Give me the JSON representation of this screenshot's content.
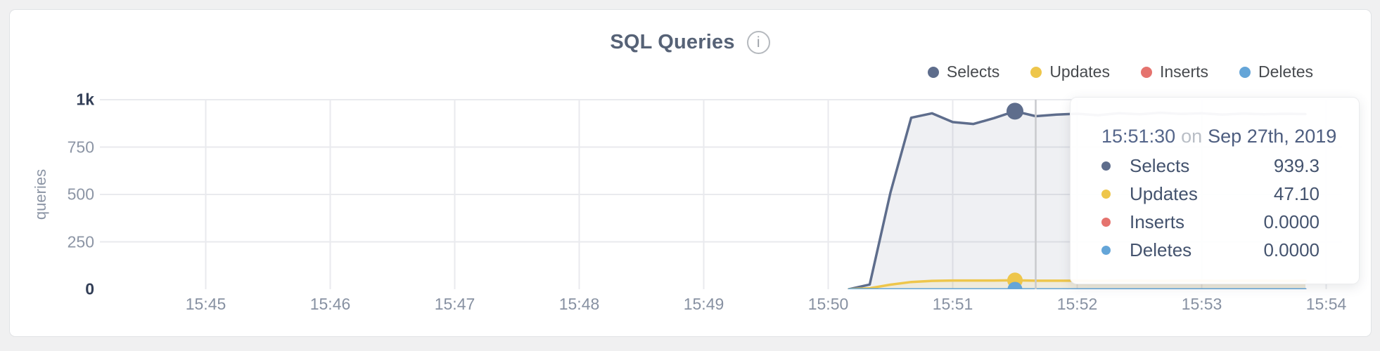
{
  "header": {
    "title": "SQL Queries",
    "info_icon": "i"
  },
  "y_axis": {
    "label": "queries",
    "ticks": [
      {
        "label": "1k",
        "value": 1000,
        "emphasized": true
      },
      {
        "label": "750",
        "value": 750,
        "emphasized": false
      },
      {
        "label": "500",
        "value": 500,
        "emphasized": false
      },
      {
        "label": "250",
        "value": 250,
        "emphasized": false
      },
      {
        "label": "0",
        "value": 0,
        "emphasized": true
      }
    ]
  },
  "x_axis": {
    "ticks": [
      "15:45",
      "15:46",
      "15:47",
      "15:48",
      "15:49",
      "15:50",
      "15:51",
      "15:52",
      "15:53",
      "15:54"
    ]
  },
  "tooltip": {
    "time": "15:51:30",
    "connector": "on",
    "date": "Sep 27th, 2019",
    "rows": [
      {
        "series": "Selects",
        "value": "939.3"
      },
      {
        "series": "Updates",
        "value": "47.10"
      },
      {
        "series": "Inserts",
        "value": "0.0000"
      },
      {
        "series": "Deletes",
        "value": "0.0000"
      }
    ]
  },
  "chart_data": {
    "type": "area",
    "title": "SQL Queries",
    "xlabel": "",
    "ylabel": "queries",
    "ylim": [
      0,
      1000
    ],
    "grid": true,
    "legend_position": "top-right",
    "x_ticks": [
      "15:45",
      "15:46",
      "15:47",
      "15:48",
      "15:49",
      "15:50",
      "15:51",
      "15:52",
      "15:53",
      "15:54"
    ],
    "x": [
      "15:50:10",
      "15:50:20",
      "15:50:30",
      "15:50:40",
      "15:50:50",
      "15:51:00",
      "15:51:10",
      "15:51:20",
      "15:51:30",
      "15:51:40",
      "15:51:50",
      "15:52:00",
      "15:52:10",
      "15:52:20",
      "15:52:30",
      "15:52:40",
      "15:52:50",
      "15:53:00",
      "15:53:10",
      "15:53:20",
      "15:53:30",
      "15:53:40",
      "15:53:50"
    ],
    "series": [
      {
        "name": "Selects",
        "color": "#5e6d8c",
        "fill": "rgba(94,109,140,0.10)",
        "values": [
          0,
          25,
          510,
          905,
          928,
          882,
          872,
          903,
          939.3,
          913,
          921,
          926,
          918,
          929,
          923,
          931,
          925,
          928,
          921,
          927,
          923,
          926,
          924
        ]
      },
      {
        "name": "Updates",
        "color": "#eec64b",
        "fill": "rgba(238,198,75,0.14)",
        "values": [
          0,
          5,
          24,
          38,
          44,
          46,
          46,
          46,
          47.1,
          45,
          45,
          45,
          44,
          45,
          45,
          44,
          45,
          45,
          44,
          45,
          45,
          44,
          45
        ]
      },
      {
        "name": "Inserts",
        "color": "#e5736e",
        "fill": "rgba(229,115,110,0.10)",
        "values": [
          0,
          0,
          0,
          0,
          0,
          0,
          0,
          0,
          0,
          0,
          0,
          0,
          0,
          0,
          0,
          0,
          0,
          0,
          0,
          0,
          0,
          0,
          0
        ]
      },
      {
        "name": "Deletes",
        "color": "#64a5d8",
        "fill": "rgba(100,165,216,0.12)",
        "values": [
          0,
          0,
          0,
          0,
          0,
          0,
          0,
          0,
          0,
          0,
          0,
          0,
          0,
          0,
          0,
          0,
          0,
          0,
          0,
          0,
          0,
          0,
          0
        ]
      }
    ],
    "highlight_x": "15:51:30",
    "crosshair_x": "15:51:40"
  }
}
